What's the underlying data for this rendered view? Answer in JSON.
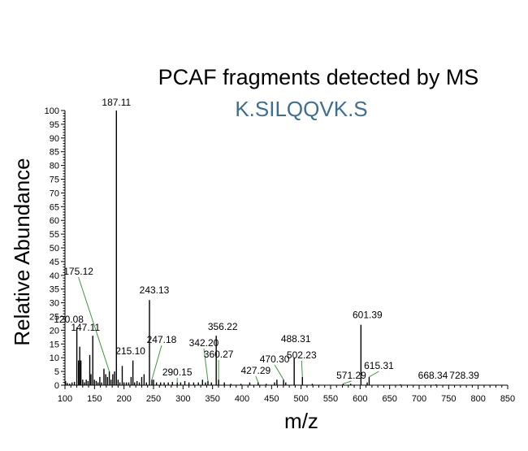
{
  "chart_data": {
    "type": "bar",
    "title": "PCAF fragments detected by MS",
    "subtitle": "K.SILQQVK.S",
    "xlabel": "m/z",
    "ylabel": "Relative Abundance",
    "xlim": [
      100,
      850
    ],
    "ylim": [
      0,
      100
    ],
    "x_major_ticks": [
      "100",
      "150",
      "200",
      "250",
      "300",
      "350",
      "400",
      "450",
      "500",
      "550",
      "600",
      "650",
      "700",
      "750",
      "800",
      "850"
    ],
    "y_major_ticks": [
      "0",
      "5",
      "10",
      "15",
      "20",
      "25",
      "30",
      "35",
      "40",
      "45",
      "50",
      "55",
      "60",
      "65",
      "70",
      "75",
      "80",
      "85",
      "90",
      "95",
      "100"
    ],
    "grid": false,
    "legend": "none",
    "labeled_peaks": [
      {
        "label": "187.11",
        "x": 187.11,
        "y": 100
      },
      {
        "label": "243.13",
        "x": 243.13,
        "y": 31
      },
      {
        "label": "120.08",
        "x": 120.08,
        "y": 21
      },
      {
        "label": "147.11",
        "x": 147.11,
        "y": 18
      },
      {
        "label": "175.12",
        "x": 175.12,
        "y": 5
      },
      {
        "label": "601.39",
        "x": 601.39,
        "y": 22
      },
      {
        "label": "356.22",
        "x": 356.22,
        "y": 18
      },
      {
        "label": "247.18",
        "x": 247.18,
        "y": 2
      },
      {
        "label": "215.10",
        "x": 215.1,
        "y": 9
      },
      {
        "label": "488.31",
        "x": 488.31,
        "y": 10
      },
      {
        "label": "502.23",
        "x": 502.23,
        "y": 3
      },
      {
        "label": "360.27",
        "x": 360.27,
        "y": 2
      },
      {
        "label": "470.30",
        "x": 470.3,
        "y": 2
      },
      {
        "label": "615.31",
        "x": 615.31,
        "y": 3
      },
      {
        "label": "342.20",
        "x": 342.2,
        "y": 1.5
      },
      {
        "label": "427.29",
        "x": 427.29,
        "y": 1
      },
      {
        "label": "290.15",
        "x": 290.15,
        "y": 1
      },
      {
        "label": "571.29",
        "x": 571.29,
        "y": 0.5
      },
      {
        "label": "668.34",
        "x": 668.34,
        "y": 0.3
      },
      {
        "label": "728.39",
        "x": 728.39,
        "y": 0.3
      }
    ],
    "minor_peaks": [
      {
        "x": 101,
        "y": 1.5
      },
      {
        "x": 104,
        "y": 0.8
      },
      {
        "x": 108,
        "y": 0.6
      },
      {
        "x": 112,
        "y": 1
      },
      {
        "x": 116,
        "y": 1.2
      },
      {
        "x": 123,
        "y": 9
      },
      {
        "x": 125,
        "y": 14
      },
      {
        "x": 127,
        "y": 9
      },
      {
        "x": 130,
        "y": 2
      },
      {
        "x": 133,
        "y": 1
      },
      {
        "x": 136,
        "y": 2
      },
      {
        "x": 139,
        "y": 1.5
      },
      {
        "x": 142,
        "y": 11
      },
      {
        "x": 144,
        "y": 4
      },
      {
        "x": 150,
        "y": 2
      },
      {
        "x": 153,
        "y": 1.5
      },
      {
        "x": 156,
        "y": 1
      },
      {
        "x": 159,
        "y": 3
      },
      {
        "x": 162,
        "y": 1
      },
      {
        "x": 166,
        "y": 6
      },
      {
        "x": 169,
        "y": 4
      },
      {
        "x": 172,
        "y": 3
      },
      {
        "x": 178,
        "y": 2
      },
      {
        "x": 181,
        "y": 4
      },
      {
        "x": 184,
        "y": 5
      },
      {
        "x": 190,
        "y": 2
      },
      {
        "x": 193,
        "y": 1
      },
      {
        "x": 197,
        "y": 7
      },
      {
        "x": 200,
        "y": 1
      },
      {
        "x": 204,
        "y": 1
      },
      {
        "x": 208,
        "y": 1
      },
      {
        "x": 212,
        "y": 3
      },
      {
        "x": 218,
        "y": 1
      },
      {
        "x": 222,
        "y": 1.5
      },
      {
        "x": 226,
        "y": 1
      },
      {
        "x": 230,
        "y": 3
      },
      {
        "x": 234,
        "y": 4
      },
      {
        "x": 238,
        "y": 1
      },
      {
        "x": 250,
        "y": 2
      },
      {
        "x": 255,
        "y": 1
      },
      {
        "x": 262,
        "y": 1
      },
      {
        "x": 268,
        "y": 1
      },
      {
        "x": 275,
        "y": 1
      },
      {
        "x": 282,
        "y": 1.2
      },
      {
        "x": 296,
        "y": 1
      },
      {
        "x": 303,
        "y": 1.5
      },
      {
        "x": 310,
        "y": 1
      },
      {
        "x": 318,
        "y": 1
      },
      {
        "x": 326,
        "y": 1
      },
      {
        "x": 333,
        "y": 2
      },
      {
        "x": 338,
        "y": 1
      },
      {
        "x": 348,
        "y": 1
      },
      {
        "x": 370,
        "y": 1
      },
      {
        "x": 381,
        "y": 0.5
      },
      {
        "x": 398,
        "y": 0.5
      },
      {
        "x": 413,
        "y": 1
      },
      {
        "x": 441,
        "y": 0.5
      },
      {
        "x": 455,
        "y": 1
      },
      {
        "x": 459,
        "y": 2
      },
      {
        "x": 474,
        "y": 1
      },
      {
        "x": 519,
        "y": 0.5
      },
      {
        "x": 584,
        "y": 0.5
      },
      {
        "x": 612,
        "y": 1
      }
    ]
  }
}
